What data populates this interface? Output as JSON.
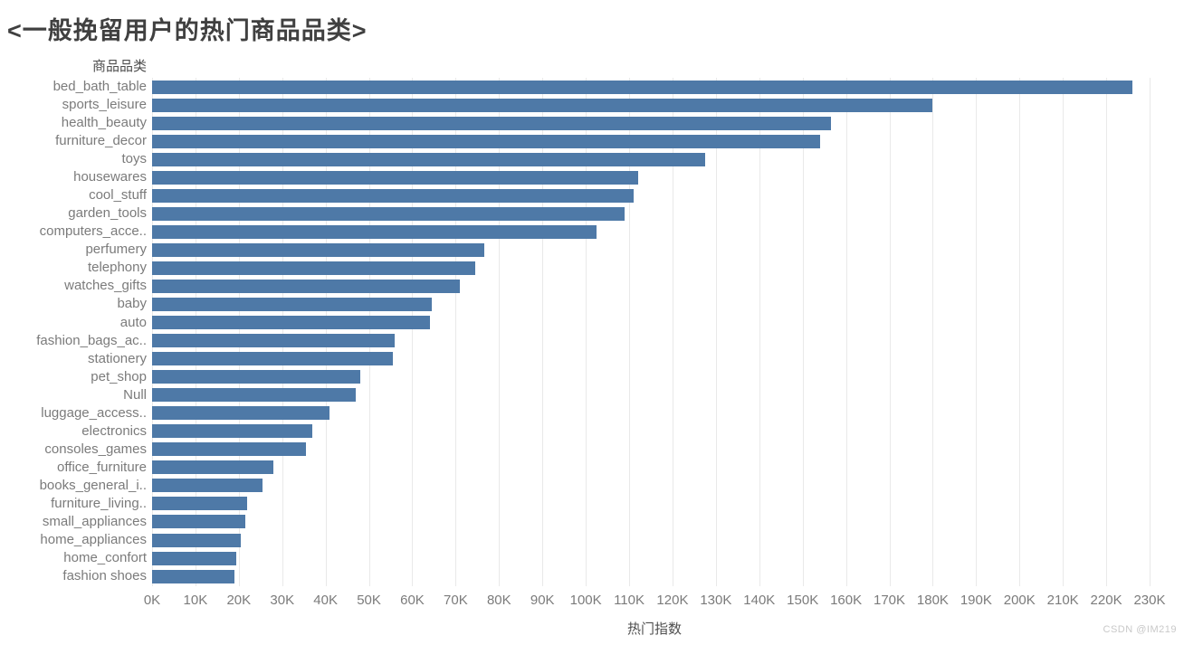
{
  "title": "<一般挽留用户的热门商品品类>",
  "watermark": "CSDN @IM219",
  "colors": {
    "bar": "#4e79a7",
    "gridline": "#e9e9e9",
    "label_text": "#7b7b7b",
    "header_text": "#4f4f4f"
  },
  "chart_data": {
    "type": "bar",
    "orientation": "horizontal",
    "title": "<一般挽留用户的热门商品品类>",
    "category_axis_title": "商品品类",
    "value_axis_title": "热门指数",
    "sort": "descending",
    "grid": true,
    "legend": "none",
    "xlim": [
      0,
      235000
    ],
    "x_tick_labels": [
      "0K",
      "10K",
      "20K",
      "30K",
      "40K",
      "50K",
      "60K",
      "70K",
      "80K",
      "90K",
      "100K",
      "110K",
      "120K",
      "130K",
      "140K",
      "150K",
      "160K",
      "170K",
      "180K",
      "190K",
      "200K",
      "210K",
      "220K",
      "230K"
    ],
    "categories": [
      "bed_bath_table",
      "sports_leisure",
      "health_beauty",
      "furniture_decor",
      "toys",
      "housewares",
      "cool_stuff",
      "garden_tools",
      "computers_acce..",
      "perfumery",
      "telephony",
      "watches_gifts",
      "baby",
      "auto",
      "fashion_bags_ac..",
      "stationery",
      "pet_shop",
      "Null",
      "luggage_access..",
      "electronics",
      "consoles_games",
      "office_furniture",
      "books_general_i..",
      "furniture_living..",
      "small_appliances",
      "home_appliances",
      "home_confort",
      "fashion shoes"
    ],
    "values": [
      226000,
      180000,
      156500,
      154000,
      127500,
      112000,
      111000,
      109000,
      102500,
      76500,
      74500,
      71000,
      64500,
      64000,
      56000,
      55500,
      48000,
      47000,
      41000,
      37000,
      35500,
      28000,
      25500,
      22000,
      21500,
      20500,
      19500,
      19000
    ]
  }
}
